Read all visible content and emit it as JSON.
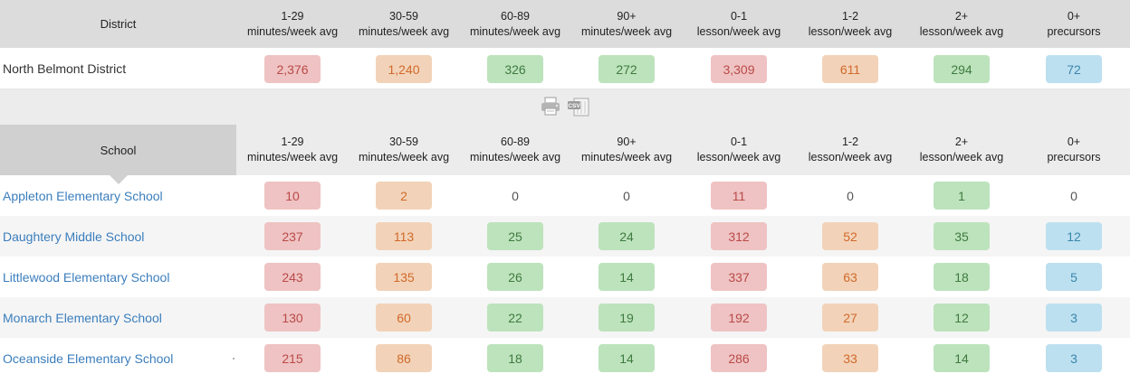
{
  "columns": [
    {
      "line1": "1-29",
      "line2": "minutes/week avg"
    },
    {
      "line1": "30-59",
      "line2": "minutes/week avg"
    },
    {
      "line1": "60-89",
      "line2": "minutes/week avg"
    },
    {
      "line1": "90+",
      "line2": "minutes/week avg"
    },
    {
      "line1": "0-1",
      "line2": "lesson/week avg"
    },
    {
      "line1": "1-2",
      "line2": "lesson/week avg"
    },
    {
      "line1": "2+",
      "line2": "lesson/week avg"
    },
    {
      "line1": "0+",
      "line2": "precursors"
    }
  ],
  "district_header": "District",
  "district": {
    "name": "North Belmont District",
    "values": [
      "2,376",
      "1,240",
      "326",
      "272",
      "3,309",
      "611",
      "294",
      "72"
    ]
  },
  "toolbar": {
    "print_icon": "printer-icon",
    "csv_icon": "csv-icon",
    "csv_text": "CSV"
  },
  "school_header": "School",
  "schools": [
    {
      "name": "Appleton Elementary School",
      "values": [
        "10",
        "2",
        "0",
        "0",
        "11",
        "0",
        "1",
        "0"
      ]
    },
    {
      "name": "Daughtery Middle School",
      "values": [
        "237",
        "113",
        "25",
        "24",
        "312",
        "52",
        "35",
        "12"
      ]
    },
    {
      "name": "Littlewood Elementary School",
      "values": [
        "243",
        "135",
        "26",
        "14",
        "337",
        "63",
        "18",
        "5"
      ]
    },
    {
      "name": "Monarch Elementary School",
      "values": [
        "130",
        "60",
        "22",
        "19",
        "192",
        "27",
        "12",
        "3"
      ]
    },
    {
      "name": "Oceanside Elementary School",
      "values": [
        "215",
        "86",
        "18",
        "14",
        "286",
        "33",
        "14",
        "3"
      ]
    }
  ],
  "colors": {
    "red": "#efc3c3",
    "orange": "#f2d3b9",
    "green": "#bde3bd",
    "blue": "#bde0f0",
    "link": "#3b7ebd"
  }
}
